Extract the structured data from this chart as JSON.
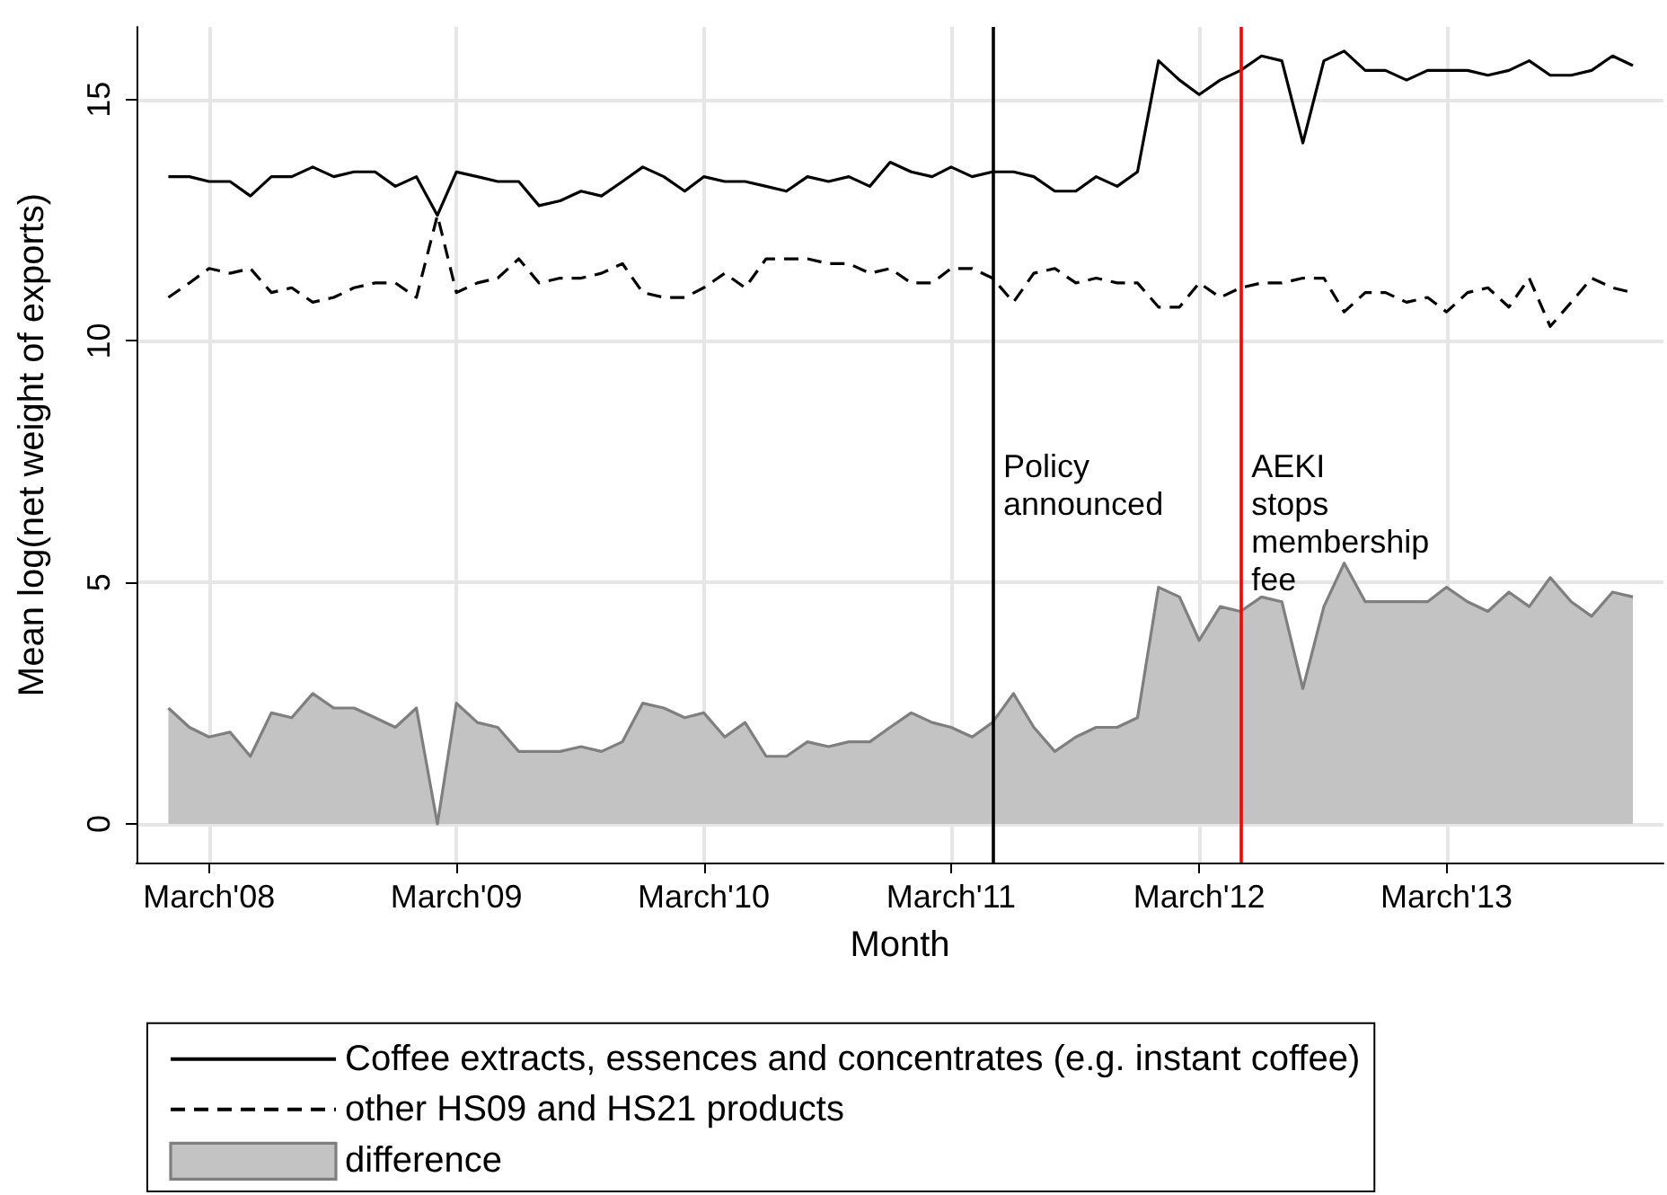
{
  "chart_data": {
    "type": "line",
    "xlabel": "Month",
    "ylabel": "Mean log(net weight of exports)",
    "x": [
      "2008-01",
      "2008-02",
      "2008-03",
      "2008-04",
      "2008-05",
      "2008-06",
      "2008-07",
      "2008-08",
      "2008-09",
      "2008-10",
      "2008-11",
      "2008-12",
      "2009-01",
      "2009-02",
      "2009-03",
      "2009-04",
      "2009-05",
      "2009-06",
      "2009-07",
      "2009-08",
      "2009-09",
      "2009-10",
      "2009-11",
      "2009-12",
      "2010-01",
      "2010-02",
      "2010-03",
      "2010-04",
      "2010-05",
      "2010-06",
      "2010-07",
      "2010-08",
      "2010-09",
      "2010-10",
      "2010-11",
      "2010-12",
      "2011-01",
      "2011-02",
      "2011-03",
      "2011-04",
      "2011-05",
      "2011-06",
      "2011-07",
      "2011-08",
      "2011-09",
      "2011-10",
      "2011-11",
      "2011-12",
      "2012-01",
      "2012-02",
      "2012-03",
      "2012-04",
      "2012-05",
      "2012-06",
      "2012-07",
      "2012-08",
      "2012-09",
      "2012-10",
      "2012-11",
      "2012-12",
      "2013-01",
      "2013-02",
      "2013-03",
      "2013-04",
      "2013-05",
      "2013-06",
      "2013-07",
      "2013-08",
      "2013-09",
      "2013-10",
      "2013-11",
      "2013-12"
    ],
    "series": [
      {
        "name": "Coffee extracts, essences and concentrates (e.g. instant coffee)",
        "color": "#000000",
        "line_style": "solid",
        "values": [
          13.4,
          13.4,
          13.3,
          13.3,
          13.0,
          13.4,
          13.4,
          13.6,
          13.4,
          13.5,
          13.5,
          13.2,
          13.4,
          12.6,
          13.5,
          13.4,
          13.3,
          13.3,
          12.8,
          12.9,
          13.1,
          13.0,
          13.3,
          13.6,
          13.4,
          13.1,
          13.4,
          13.3,
          13.3,
          13.2,
          13.1,
          13.4,
          13.3,
          13.4,
          13.2,
          13.7,
          13.5,
          13.4,
          13.6,
          13.4,
          13.5,
          13.5,
          13.4,
          13.1,
          13.1,
          13.4,
          13.2,
          13.5,
          15.8,
          15.4,
          15.1,
          15.4,
          15.6,
          15.9,
          15.8,
          14.1,
          15.8,
          16.0,
          15.6,
          15.6,
          15.4,
          15.6,
          15.6,
          15.6,
          15.5,
          15.6,
          15.8,
          15.5,
          15.5,
          15.6,
          15.9,
          15.7
        ]
      },
      {
        "name": "other HS09 and HS21 products",
        "color": "#000000",
        "line_style": "dashed",
        "values": [
          10.9,
          11.2,
          11.5,
          11.4,
          11.5,
          11.0,
          11.1,
          10.8,
          10.9,
          11.1,
          11.2,
          11.2,
          10.9,
          12.6,
          11.0,
          11.2,
          11.3,
          11.7,
          11.2,
          11.3,
          11.3,
          11.4,
          11.6,
          11.0,
          10.9,
          10.9,
          11.1,
          11.4,
          11.1,
          11.7,
          11.7,
          11.7,
          11.6,
          11.6,
          11.4,
          11.5,
          11.2,
          11.2,
          11.5,
          11.5,
          11.3,
          10.8,
          11.4,
          11.5,
          11.2,
          11.3,
          11.2,
          11.2,
          10.7,
          10.7,
          11.2,
          10.9,
          11.1,
          11.2,
          11.2,
          11.3,
          11.3,
          10.6,
          11.0,
          11.0,
          10.8,
          10.9,
          10.6,
          11.0,
          11.1,
          10.7,
          11.3,
          10.3,
          10.8,
          11.3,
          11.1,
          11.0
        ]
      },
      {
        "name": "difference",
        "type": "area",
        "color": "#c3c3c3",
        "values": [
          2.4,
          2.0,
          1.8,
          1.9,
          1.4,
          2.3,
          2.2,
          2.7,
          2.4,
          2.4,
          2.2,
          2.0,
          2.4,
          0,
          2.5,
          2.1,
          2.0,
          1.5,
          1.5,
          1.5,
          1.6,
          1.5,
          1.7,
          2.5,
          2.4,
          2.2,
          2.3,
          1.8,
          2.1,
          1.4,
          1.4,
          1.7,
          1.6,
          1.7,
          1.7,
          2.0,
          2.3,
          2.1,
          2.0,
          1.8,
          2.1,
          2.7,
          2.0,
          1.5,
          1.8,
          2.0,
          2.0,
          2.2,
          4.9,
          4.7,
          3.8,
          4.5,
          4.4,
          4.7,
          4.6,
          2.8,
          4.5,
          5.4,
          4.6,
          4.6,
          4.6,
          4.6,
          4.9,
          4.6,
          4.4,
          4.8,
          4.5,
          5.1,
          4.6,
          4.3,
          4.8,
          4.7
        ]
      }
    ],
    "xlim": [
      "2007-11-15",
      "2014-01-15"
    ],
    "xticks": [
      {
        "value": "2008-03",
        "label": "March'08"
      },
      {
        "value": "2009-03",
        "label": "March'09"
      },
      {
        "value": "2010-03",
        "label": "March'10"
      },
      {
        "value": "2011-03",
        "label": "March'11"
      },
      {
        "value": "2012-03",
        "label": "March'12"
      },
      {
        "value": "2013-03",
        "label": "March'13"
      }
    ],
    "ylim": [
      -0.8,
      16.5
    ],
    "yticks": [
      0,
      5,
      10,
      15
    ],
    "ref_lines": [
      {
        "axis": "x",
        "value": "2011-05",
        "label": "Policy\nannounced",
        "color": "#000000"
      },
      {
        "axis": "x",
        "value": "2012-05",
        "label": "AEKI\nstops\nmembership\nfee",
        "color": "#ff0000"
      }
    ],
    "grid": true,
    "legend": "bottom",
    "marker": "none"
  }
}
